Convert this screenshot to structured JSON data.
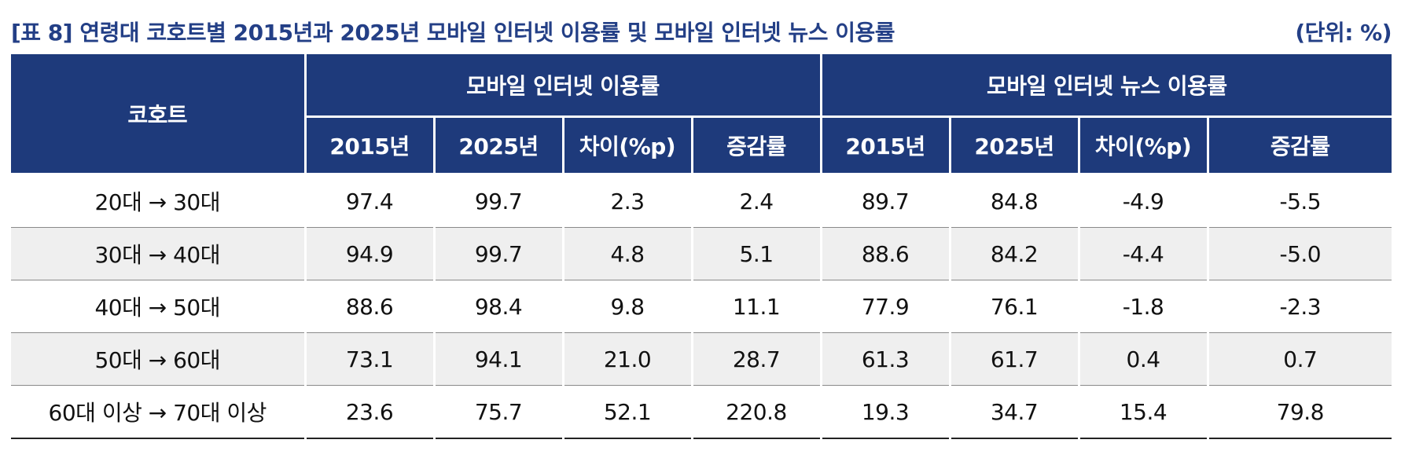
{
  "title": "[표 8] 연령대 코호트별 2015년과 2025년 모바일 인터넷 이용률 및 모바일 인터넷 뉴스 이용률",
  "unit": "(단위: %)",
  "header": {
    "cohort": "코호트",
    "group1": "모바일 인터넷 이용률",
    "group2": "모바일 인터넷 뉴스 이용률",
    "sub": [
      "2015년",
      "2025년",
      "차이(%p)",
      "증감률",
      "2015년",
      "2025년",
      "차이(%p)",
      "증감률"
    ]
  },
  "rows": [
    {
      "cohort": "20대 → 30대",
      "values": [
        "97.4",
        "99.7",
        "2.3",
        "2.4",
        "89.7",
        "84.8",
        "-4.9",
        "-5.5"
      ]
    },
    {
      "cohort": "30대 → 40대",
      "values": [
        "94.9",
        "99.7",
        "4.8",
        "5.1",
        "88.6",
        "84.2",
        "-4.4",
        "-5.0"
      ]
    },
    {
      "cohort": "40대 → 50대",
      "values": [
        "88.6",
        "98.4",
        "9.8",
        "11.1",
        "77.9",
        "76.1",
        "-1.8",
        "-2.3"
      ]
    },
    {
      "cohort": "50대 → 60대",
      "values": [
        "73.1",
        "94.1",
        "21.0",
        "28.7",
        "61.3",
        "61.7",
        "0.4",
        "0.7"
      ]
    },
    {
      "cohort": "60대 이상 → 70대 이상",
      "values": [
        "23.6",
        "75.7",
        "52.1",
        "220.8",
        "19.3",
        "34.7",
        "15.4",
        "79.8"
      ]
    }
  ],
  "colors": {
    "header_bg": "#1e3a7b",
    "title": "#233f86",
    "stripe": "#efefef"
  }
}
